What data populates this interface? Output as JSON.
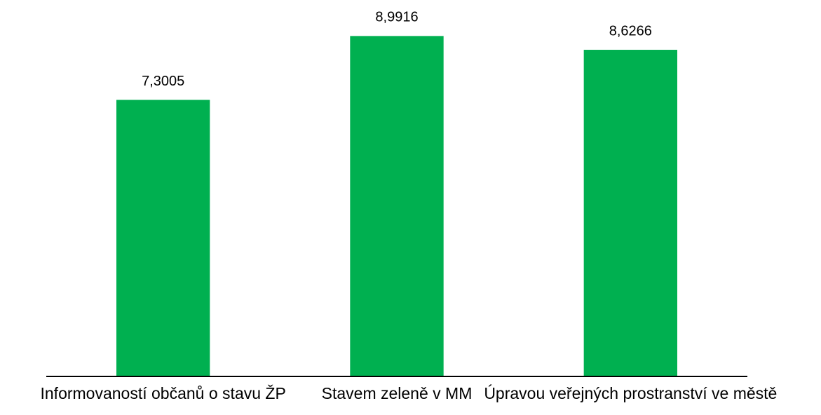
{
  "chart_data": {
    "type": "bar",
    "categories": [
      "Informovaností občanů o stavu ŽP",
      "Stavem zeleně v MM",
      "Úpravou veřejných prostranství ve městě"
    ],
    "values": [
      7.3005,
      8.9916,
      8.6266
    ],
    "value_labels": [
      "7,3005",
      "8,9916",
      "8,6266"
    ],
    "color": "#00b050",
    "ylim": [
      0,
      10
    ]
  }
}
